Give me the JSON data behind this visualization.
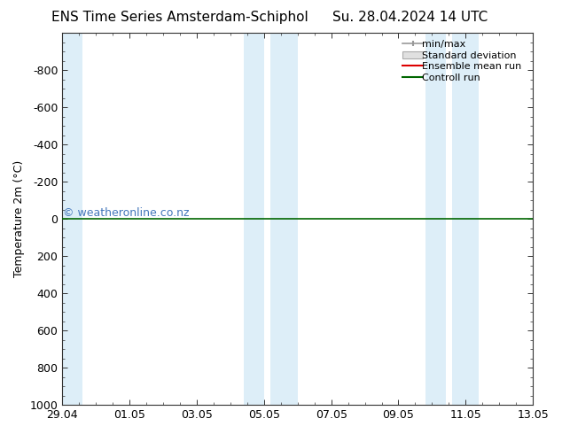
{
  "title_left": "ENS Time Series Amsterdam-Schiphol",
  "title_right": "Su. 28.04.2024 14 UTC",
  "ylabel": "Temperature 2m (°C)",
  "ylim": [
    -1000,
    1000
  ],
  "yticks": [
    -800,
    -600,
    -400,
    -200,
    0,
    200,
    400,
    600,
    800,
    1000
  ],
  "xlim_start": 0,
  "xlim_end": 14,
  "xtick_labels": [
    "29.04",
    "01.05",
    "03.05",
    "05.05",
    "07.05",
    "09.05",
    "11.05",
    "13.05"
  ],
  "xtick_positions": [
    0,
    2,
    4,
    6,
    8,
    10,
    12,
    14
  ],
  "blue_bands": [
    [
      0,
      0.6
    ],
    [
      5.4,
      6.0
    ],
    [
      6.2,
      7.0
    ],
    [
      10.8,
      11.4
    ],
    [
      11.6,
      12.4
    ]
  ],
  "green_line_y": 0,
  "watermark": "© weatheronline.co.nz",
  "watermark_color": "#4477bb",
  "legend_labels": [
    "min/max",
    "Standard deviation",
    "Ensemble mean run",
    "Controll run"
  ],
  "legend_colors": [
    "#999999",
    "#cccccc",
    "#dd0000",
    "#006600"
  ],
  "background_color": "#ffffff",
  "plot_bg_color": "#ffffff",
  "band_color": "#ddeef8",
  "spine_color": "#888888",
  "title_fontsize": 11,
  "axis_fontsize": 9,
  "tick_fontsize": 9,
  "watermark_fontsize": 9
}
